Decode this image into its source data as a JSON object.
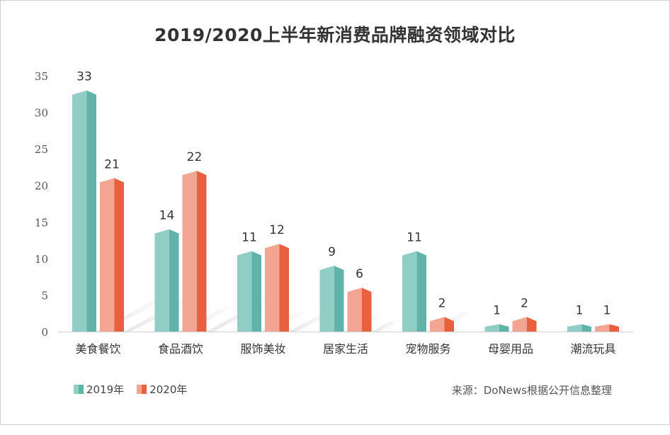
{
  "chart_data": {
    "type": "bar",
    "title": "2019/2020上半年新消费品牌融资领域对比",
    "categories": [
      "美食餐饮",
      "食品酒饮",
      "服饰美妆",
      "居家生活",
      "宠物服务",
      "母婴用品",
      "潮流玩具"
    ],
    "series": [
      {
        "name": "2019年",
        "values": [
          33,
          14,
          11,
          9,
          11,
          1,
          1
        ],
        "color": "#5fb3a9",
        "color_light": "#8fcdc5"
      },
      {
        "name": "2020年",
        "values": [
          21,
          22,
          12,
          6,
          2,
          2,
          1
        ],
        "color": "#e8603d",
        "color_light": "#f2a592"
      }
    ],
    "y_ticks": [
      "0",
      "5",
      "10",
      "15",
      "20",
      "25",
      "30",
      "35"
    ],
    "ylim": [
      0,
      35
    ],
    "grid": false,
    "legend_position": "bottom-left",
    "data_labels": true
  },
  "source_text": "来源：DoNews根据公开信息整理"
}
